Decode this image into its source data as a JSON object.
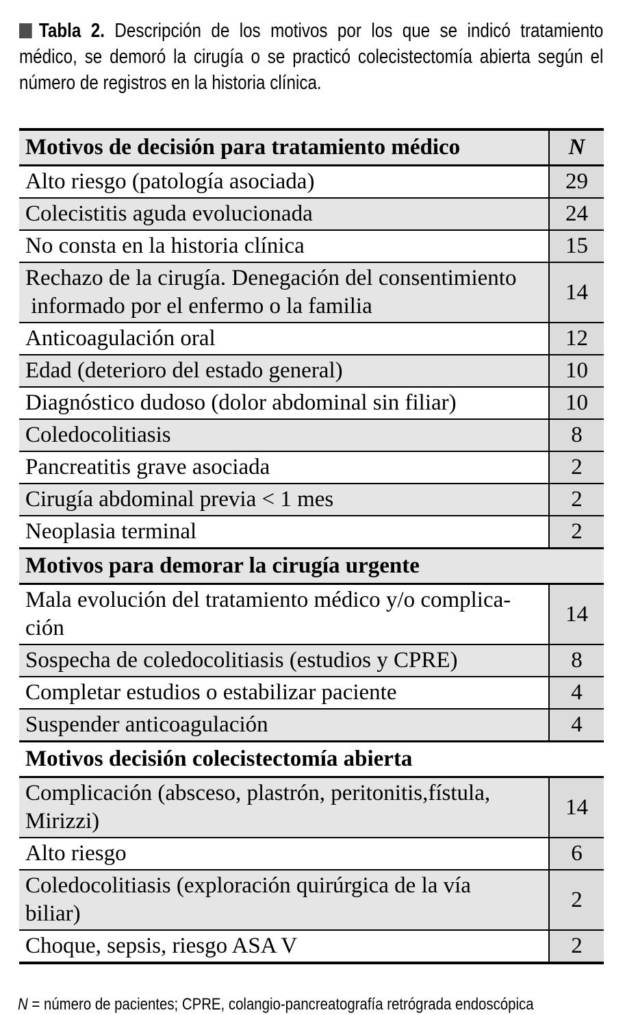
{
  "caption": {
    "label": "Tabla 2.",
    "text": " Descripción de los motivos por los que se indicó tratamiento médico, se demoró la cirugía o se practicó colecistectomía abierta según el número de registros en la historia clínica."
  },
  "table": {
    "n_header": "N",
    "sections": [
      {
        "header": "Motivos de decisión para tratamiento médico",
        "has_n_header": true,
        "rows": [
          {
            "label": "Alto riesgo (patología asociada)",
            "n": "29"
          },
          {
            "label": "Colecistitis aguda evolucionada",
            "n": "24"
          },
          {
            "label": "No consta en la historia clínica",
            "n": "15"
          },
          {
            "label": "Rechazo de la cirugía. Denegación del consentimiento\n informado por el enfermo o la familia",
            "n": "14"
          },
          {
            "label": "Anticoagulación oral",
            "n": "12"
          },
          {
            "label": "Edad (deterioro del estado general)",
            "n": "10"
          },
          {
            "label": "Diagnóstico dudoso (dolor abdominal sin filiar)",
            "n": "10"
          },
          {
            "label": "Coledocolitiasis",
            "n": "8"
          },
          {
            "label": "Pancreatitis grave asociada",
            "n": "2"
          },
          {
            "label": "Cirugía abdominal previa < 1 mes",
            "n": "2"
          },
          {
            "label": "Neoplasia terminal",
            "n": "2"
          }
        ]
      },
      {
        "header": "Motivos para demorar la cirugía urgente",
        "has_n_header": false,
        "rows": [
          {
            "label": "Mala evolución del tratamiento médico y/o complica-\nción",
            "n": "14"
          },
          {
            "label": "Sospecha de coledocolitiasis (estudios y CPRE)",
            "n": "8"
          },
          {
            "label": "Completar estudios o estabilizar paciente",
            "n": "4"
          },
          {
            "label": "Suspender anticoagulación",
            "n": "4"
          }
        ]
      },
      {
        "header": "Motivos decisión colecistectomía abierta",
        "has_n_header": false,
        "rows": [
          {
            "label": "Complicación (absceso, plastrón, peritonitis,fístula,\nMirizzi)",
            "n": "14"
          },
          {
            "label": "Alto riesgo",
            "n": "6"
          },
          {
            "label": "Coledocolitiasis (exploración quirúrgica de la vía\nbiliar)",
            "n": "2"
          },
          {
            "label": "Choque, sepsis, riesgo ASA V",
            "n": "2"
          }
        ]
      }
    ]
  },
  "footnote": {
    "n_symbol": "N",
    "text": " = número de pacientes; CPRE, colangio-pancreatografía retrógrada endoscópica"
  },
  "colors": {
    "stripe": "#e5e5e5",
    "n_column": "#dcdcdc",
    "rule": "#000000",
    "caption_square": "#4d4d4d"
  }
}
